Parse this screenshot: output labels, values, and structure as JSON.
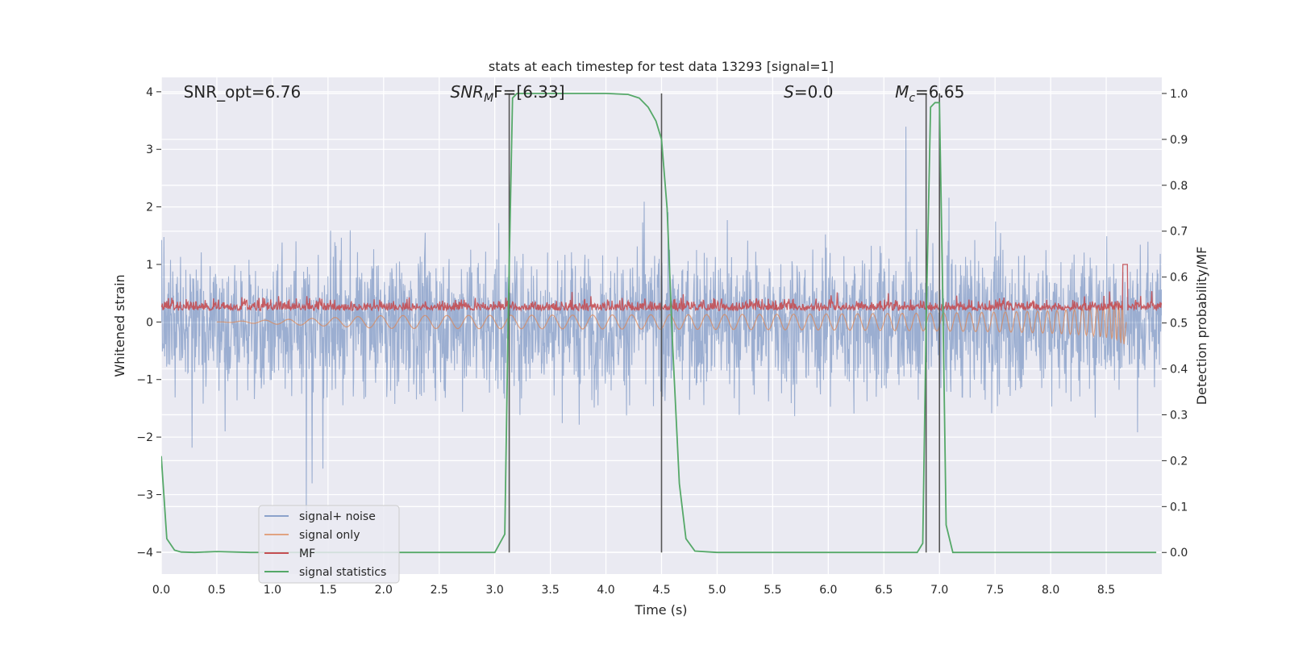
{
  "chart_data": {
    "type": "line",
    "title": "stats at each timestep for test data 13293 [signal=1]",
    "xlabel": "Time (s)",
    "ylabel": "Whitened strain",
    "y2label": "Detection probability/MF",
    "xlim": [
      0,
      9
    ],
    "ylim": [
      -4.38,
      4.25
    ],
    "y2lim": [
      -0.047,
      1.035
    ],
    "xticks": [
      "0.0",
      "0.5",
      "1.0",
      "1.5",
      "2.0",
      "2.5",
      "3.0",
      "3.5",
      "4.0",
      "4.5",
      "5.0",
      "5.5",
      "6.0",
      "6.5",
      "7.0",
      "7.5",
      "8.0",
      "8.5"
    ],
    "yticks": [
      "−4",
      "−3",
      "−2",
      "−1",
      "0",
      "1",
      "2",
      "3",
      "4"
    ],
    "y2ticks": [
      "0.0",
      "0.1",
      "0.2",
      "0.3",
      "0.4",
      "0.5",
      "0.6",
      "0.7",
      "0.8",
      "0.9",
      "1.0"
    ],
    "grid": true,
    "legend_position": "lower-left",
    "colors": {
      "background": "#eaeaf2",
      "grid": "#ffffff",
      "noise": "#4c72b0",
      "signal_only": "#dd8452",
      "mf": "#c44e52",
      "statistics": "#55a868",
      "vlines": "#555555"
    },
    "annotations": [
      {
        "kind": "plain",
        "text": "SNR_opt=6.76",
        "x": 0.2
      },
      {
        "kind": "snr_mf",
        "main": "SNR",
        "sub": "M",
        "rest": "F=[6.33]",
        "x": 2.6
      },
      {
        "kind": "italic_var",
        "main": "S",
        "sub": "",
        "rest": "=0.0",
        "x": 5.6
      },
      {
        "kind": "italic_var",
        "main": "M",
        "sub": "c",
        "rest": "=6.65",
        "x": 6.6
      }
    ],
    "vlines": [
      3.13,
      4.5,
      6.88,
      7.0
    ],
    "series": [
      {
        "name": "signal+ noise",
        "key": "noise"
      },
      {
        "name": "signal only",
        "key": "signal_only"
      },
      {
        "name": "MF",
        "key": "mf"
      },
      {
        "name": "signal statistics",
        "key": "statistics",
        "x": [
          0.0,
          0.05,
          0.12,
          0.18,
          0.3,
          0.5,
          0.8,
          1.2,
          2.0,
          2.5,
          3.0,
          3.09,
          3.12,
          3.16,
          3.2,
          3.26,
          3.5,
          4.0,
          4.2,
          4.3,
          4.38,
          4.45,
          4.5,
          4.55,
          4.6,
          4.66,
          4.72,
          4.8,
          5.0,
          6.0,
          6.8,
          6.85,
          6.88,
          6.92,
          6.96,
          7.0,
          7.03,
          7.06,
          7.12,
          7.3,
          8.0,
          8.5,
          8.95
        ],
        "y": [
          0.21,
          0.03,
          0.005,
          0.001,
          0.0,
          0.002,
          0.0,
          0.0,
          0.0,
          0.0,
          0.0,
          0.04,
          0.5,
          0.99,
          1.0,
          1.0,
          1.0,
          1.0,
          0.998,
          0.99,
          0.97,
          0.94,
          0.9,
          0.75,
          0.45,
          0.15,
          0.03,
          0.003,
          0.0,
          0.0,
          0.0,
          0.02,
          0.5,
          0.97,
          0.98,
          0.98,
          0.55,
          0.06,
          0.0,
          0.0,
          0.0,
          0.0,
          0.0
        ]
      }
    ]
  }
}
